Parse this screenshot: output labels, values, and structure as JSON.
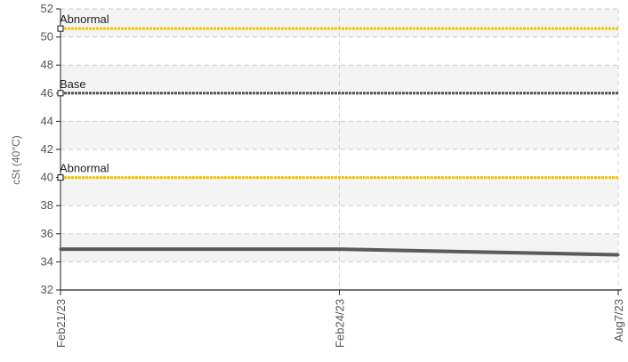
{
  "chart_data": {
    "type": "line",
    "title": "",
    "xlabel": "",
    "ylabel": "cSt (40°C)",
    "ylim": [
      32,
      52
    ],
    "yticks": [
      32,
      34,
      36,
      38,
      40,
      42,
      44,
      46,
      48,
      50,
      52
    ],
    "categories": [
      "Feb21/23",
      "Feb24/23",
      "Aug7/23"
    ],
    "grid": true,
    "legend": "none",
    "series": [
      {
        "values": [
          34.9,
          34.9,
          34.5
        ],
        "color": "#5a5a5a"
      }
    ],
    "reference_lines": [
      {
        "label": "Abnormal",
        "value": 50.6,
        "color": "#f5c400"
      },
      {
        "label": "Base",
        "value": 46.0,
        "color": "#555555"
      },
      {
        "label": "Abnormal",
        "value": 40.0,
        "color": "#f5c400"
      }
    ]
  }
}
